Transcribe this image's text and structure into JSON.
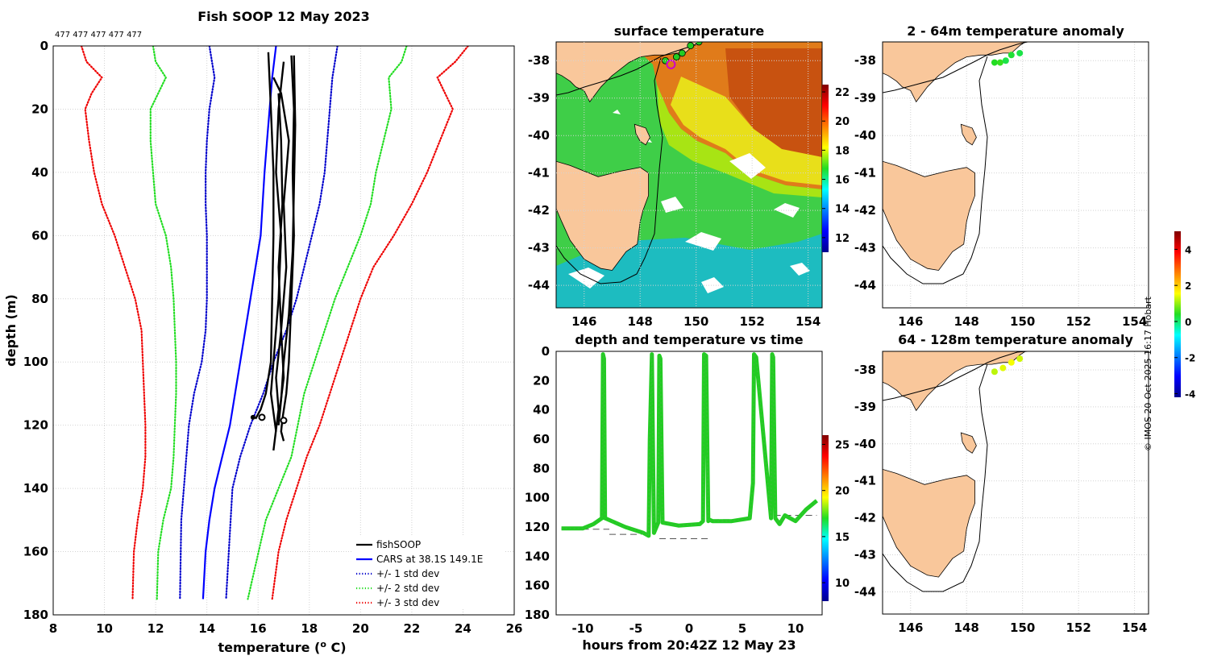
{
  "colors": {
    "land": "#f9c79b",
    "fish_soop": "#000000",
    "cars": "#0000ff",
    "std1": "#0000cc",
    "std2": "#22dd22",
    "std3": "#ee0000",
    "green_marker": "#22cc22",
    "magenta_marker": "#cc00cc"
  },
  "credit": "© IMOS 20-Oct-2025 16:17 Hobart",
  "chart_data": [
    {
      "id": "profile",
      "type": "line",
      "title": "Fish SOOP 12 May 2023",
      "counts_label": "477 477 477 477 477",
      "xlabel": "temperature (",
      "xlabel_sup": "o",
      "xlabel_tail": " C)",
      "ylabel": "depth (m)",
      "xlim": [
        8,
        26
      ],
      "ylim": [
        0,
        180
      ],
      "xticks": [
        8,
        10,
        12,
        14,
        16,
        18,
        20,
        22,
        24,
        26
      ],
      "yticks": [
        0,
        20,
        40,
        60,
        80,
        100,
        120,
        140,
        160,
        180
      ],
      "grid": true,
      "legend_position": "bottom-right",
      "legend": [
        "fishSOOP",
        "CARS at 38.1S 149.1E",
        "+/- 1 std dev",
        "+/- 2 std dev",
        "+/- 3 std dev"
      ],
      "series": [
        {
          "name": "CARS at 38.1S 149.1E",
          "style": "solid",
          "color": "#0000ff",
          "t": [
            16.7,
            16.55,
            16.45,
            16.35,
            16.25,
            16.1,
            15.7,
            15.3,
            14.9,
            14.6,
            14.3,
            14.1,
            13.95,
            13.85
          ],
          "d": [
            0,
            10,
            20,
            30,
            40,
            60,
            80,
            100,
            120,
            130,
            140,
            150,
            160,
            175
          ]
        },
        {
          "name": "-1 std",
          "style": "dotted",
          "color": "#0000cc",
          "t": [
            14.1,
            14.3,
            14.1,
            14.0,
            13.95,
            13.95,
            14.0,
            14.0,
            14.0,
            13.95,
            13.8,
            13.5,
            13.3,
            13.2,
            13.1,
            13.0,
            12.95
          ],
          "d": [
            0,
            10,
            20,
            30,
            40,
            50,
            60,
            70,
            80,
            90,
            100,
            110,
            120,
            130,
            140,
            150,
            175
          ]
        },
        {
          "name": "+1 std",
          "style": "dotted",
          "color": "#0000cc",
          "t": [
            19.1,
            18.9,
            18.8,
            18.7,
            18.6,
            18.4,
            18.1,
            17.8,
            17.5,
            17.1,
            16.6,
            16.2,
            15.7,
            15.3,
            15.0,
            14.75
          ],
          "d": [
            0,
            10,
            20,
            30,
            40,
            50,
            60,
            70,
            80,
            90,
            100,
            110,
            120,
            130,
            140,
            175
          ]
        },
        {
          "name": "-2 std",
          "style": "dotted",
          "color": "#22dd22",
          "t": [
            11.9,
            12.0,
            12.4,
            11.8,
            11.8,
            11.9,
            12.0,
            12.4,
            12.6,
            12.7,
            12.75,
            12.8,
            12.8,
            12.75,
            12.7,
            12.6,
            12.3,
            12.1,
            12.05
          ],
          "d": [
            0,
            5,
            10,
            20,
            30,
            40,
            50,
            60,
            70,
            80,
            90,
            100,
            110,
            120,
            130,
            140,
            150,
            160,
            175
          ]
        },
        {
          "name": "+2 std",
          "style": "dotted",
          "color": "#22dd22",
          "t": [
            21.8,
            21.6,
            21.1,
            21.2,
            20.9,
            20.6,
            20.4,
            20.0,
            19.5,
            19.0,
            18.6,
            18.2,
            17.8,
            17.3,
            16.8,
            16.3,
            15.6
          ],
          "d": [
            0,
            5,
            10,
            20,
            30,
            40,
            50,
            60,
            70,
            80,
            90,
            100,
            110,
            130,
            140,
            150,
            175
          ]
        },
        {
          "name": "-3 std",
          "style": "dotted",
          "color": "#ee0000",
          "t": [
            9.1,
            9.3,
            9.9,
            9.5,
            9.25,
            9.4,
            9.6,
            9.9,
            10.4,
            10.8,
            11.2,
            11.45,
            11.5,
            11.55,
            11.6,
            11.6,
            11.5,
            11.3,
            11.15,
            11.1
          ],
          "d": [
            0,
            5,
            10,
            15,
            20,
            30,
            40,
            50,
            60,
            70,
            80,
            90,
            100,
            110,
            120,
            130,
            140,
            150,
            160,
            175
          ]
        },
        {
          "name": "+3 std",
          "style": "dotted",
          "color": "#ee0000",
          "t": [
            24.2,
            23.7,
            23.0,
            23.6,
            23.1,
            22.6,
            22.0,
            21.3,
            20.5,
            20.0,
            19.6,
            19.2,
            18.8,
            18.4,
            17.9,
            17.5,
            17.1,
            16.8,
            16.55
          ],
          "d": [
            0,
            5,
            10,
            20,
            30,
            40,
            50,
            60,
            70,
            80,
            90,
            100,
            110,
            120,
            130,
            140,
            150,
            160,
            175
          ]
        },
        {
          "name": "fishSOOP",
          "style": "solid",
          "color": "#000000",
          "casts": [
            {
              "t": [
                17.3,
                17.4,
                17.35,
                17.4,
                17.3,
                17.2,
                17.1,
                16.95,
                16.9,
                17.0
              ],
              "d": [
                3,
                20,
                40,
                60,
                80,
                100,
                110,
                118,
                122,
                125
              ]
            },
            {
              "t": [
                17.4,
                17.45,
                17.4,
                17.35,
                17.2,
                17.0,
                16.9,
                16.8
              ],
              "d": [
                3,
                25,
                45,
                65,
                85,
                100,
                112,
                120
              ]
            },
            {
              "t": [
                16.4,
                16.5,
                16.6,
                16.6,
                16.55,
                16.5,
                16.3,
                16.1,
                15.9
              ],
              "d": [
                2,
                20,
                40,
                60,
                80,
                100,
                110,
                115,
                118
              ]
            },
            {
              "t": [
                16.6,
                16.9,
                17.2,
                17.0,
                17.1,
                16.9,
                16.7,
                16.8,
                16.6
              ],
              "d": [
                10,
                15,
                30,
                50,
                70,
                90,
                105,
                115,
                128
              ]
            },
            {
              "t": [
                17.0,
                16.8,
                16.7,
                16.9,
                16.8,
                16.6,
                16.5,
                16.7
              ],
              "d": [
                5,
                20,
                40,
                60,
                80,
                100,
                110,
                122
              ]
            },
            {
              "t": [
                16.8,
                16.9,
                16.95,
                16.8,
                16.9,
                17.0,
                16.8
              ],
              "d": [
                15,
                30,
                50,
                70,
                90,
                105,
                118
              ]
            }
          ]
        }
      ]
    },
    {
      "id": "sst_map",
      "type": "heatmap",
      "title": "surface temperature",
      "xlim": [
        145,
        154.5
      ],
      "ylim": [
        -44.6,
        -37.5
      ],
      "xticks": [
        146,
        148,
        150,
        152,
        154
      ],
      "yticks": [
        -38,
        -39,
        -40,
        -41,
        -42,
        -43,
        -44
      ],
      "colorbar_range": [
        11,
        22.5
      ],
      "colorbar_ticks": [
        12,
        14,
        16,
        18,
        20,
        22
      ],
      "markers": [
        [
          148.9,
          -38.0
        ],
        [
          149.3,
          -37.9
        ],
        [
          149.5,
          -37.8
        ],
        [
          149.8,
          -37.6
        ],
        [
          150.1,
          -37.5
        ]
      ],
      "highlight_marker": [
        149.1,
        -38.1
      ]
    },
    {
      "id": "time_depth",
      "type": "scatter",
      "title": "depth and temperature vs time",
      "xlabel": "hours from 20:42Z 12 May 23",
      "xlim": [
        -12.5,
        12.5
      ],
      "ylim": [
        0,
        180
      ],
      "xticks": [
        -10,
        -5,
        0,
        5,
        10
      ],
      "yticks": [
        0,
        20,
        40,
        60,
        80,
        100,
        120,
        140,
        160,
        180
      ],
      "colorbar_range": [
        8,
        26
      ],
      "colorbar_ticks": [
        10,
        15,
        20,
        25
      ],
      "track": {
        "hours": [
          -12,
          -10,
          -9,
          -8.2,
          -8.1,
          -8.0,
          -7.9,
          -6,
          -4.3,
          -3.8,
          -3.7,
          -3.5,
          -3.3,
          -2.9,
          -2.8,
          -2.7,
          -2.5,
          -1,
          1,
          1.3,
          1.4,
          1.6,
          1.8,
          1.9,
          2.2,
          4,
          5.7,
          6.0,
          6.1,
          6.3,
          7.7,
          7.8,
          7.9,
          8.1,
          8.5,
          9,
          10,
          11,
          12
        ],
        "depth": [
          121,
          121,
          118,
          114,
          2,
          5,
          114,
          120,
          124,
          126,
          60,
          2,
          124,
          117,
          3,
          5,
          117,
          119,
          118,
          116,
          2,
          3,
          116,
          115,
          116,
          116,
          114,
          90,
          2,
          4,
          114,
          2,
          4,
          114,
          118,
          112,
          116,
          108,
          102
        ]
      },
      "bottom_segments": [
        {
          "from": -12,
          "to": -7.5,
          "depth": 121.5
        },
        {
          "from": -7.5,
          "to": -4.5,
          "depth": 125
        },
        {
          "from": -2.8,
          "to": 1.8,
          "depth": 128
        },
        {
          "from": 2.2,
          "to": 5.8,
          "depth": 115
        },
        {
          "from": 8,
          "to": 12,
          "depth": 112
        }
      ]
    },
    {
      "id": "anom_shallow",
      "type": "scatter",
      "title": "2 - 64m temperature anomaly",
      "xlim": [
        145,
        154.5
      ],
      "ylim": [
        -44.6,
        -37.5
      ],
      "xticks": [
        146,
        148,
        150,
        152,
        154
      ],
      "yticks": [
        -38,
        -39,
        -40,
        -41,
        -42,
        -43,
        -44
      ],
      "points": [
        [
          149.0,
          -38.05,
          0.4
        ],
        [
          149.2,
          -38.05,
          0.5
        ],
        [
          149.4,
          -38.0,
          0.2
        ],
        [
          149.6,
          -37.85,
          0.3
        ],
        [
          149.9,
          -37.8,
          0.2
        ]
      ]
    },
    {
      "id": "anom_deep",
      "type": "scatter",
      "title": "64 - 128m temperature anomaly",
      "xlim": [
        145,
        154.5
      ],
      "ylim": [
        -44.6,
        -37.5
      ],
      "xticks": [
        146,
        148,
        150,
        152,
        154
      ],
      "yticks": [
        -38,
        -39,
        -40,
        -41,
        -42,
        -43,
        -44
      ],
      "points": [
        [
          149.0,
          -38.05,
          1.2
        ],
        [
          149.3,
          -37.95,
          1.4
        ],
        [
          149.6,
          -37.8,
          1.5
        ],
        [
          149.9,
          -37.7,
          1.3
        ]
      ],
      "colorbar_range": [
        -4.2,
        5
      ],
      "colorbar_ticks": [
        4,
        2,
        0,
        -2,
        -4
      ]
    }
  ]
}
